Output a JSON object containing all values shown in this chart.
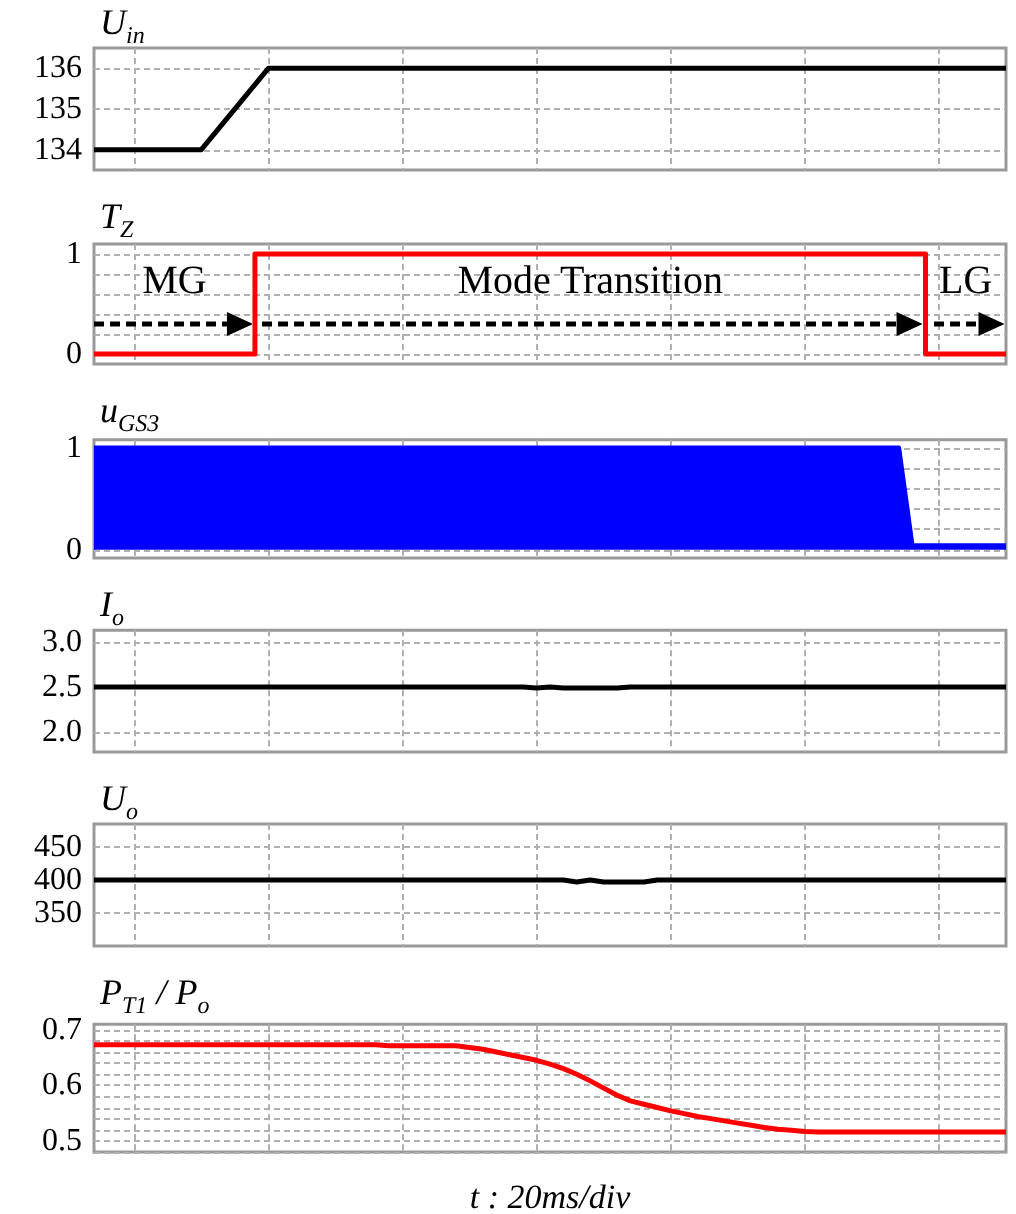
{
  "chart_data": [
    {
      "type": "line",
      "title": "U$_{in}$",
      "tick_labels": "y",
      "grid": true,
      "color": "#000000",
      "ylim": [
        133.5,
        136.5
      ],
      "yticks": [
        134,
        135,
        136
      ],
      "categories": [
        null,
        null,
        null,
        null,
        null,
        null,
        null,
        null,
        null,
        null,
        null,
        null,
        null,
        null,
        null,
        null,
        null,
        null,
        null,
        null,
        null,
        null,
        null,
        null,
        null,
        null,
        null,
        null,
        null,
        null,
        null,
        null,
        null,
        null,
        null,
        null,
        null,
        null,
        null,
        null,
        null,
        null,
        null,
        null,
        null,
        null,
        null,
        null,
        null,
        null,
        null,
        null,
        null,
        null,
        null,
        null,
        null,
        null,
        null,
        null,
        null,
        null,
        null,
        null,
        null,
        null,
        null,
        null,
        null
      ],
      "values": [
        134,
        134,
        134,
        134,
        134,
        134,
        134,
        134,
        134,
        134.4,
        134.8,
        135.2,
        135.6,
        136,
        136,
        136,
        136,
        136,
        136,
        136,
        136,
        136,
        136,
        136,
        136,
        136,
        136,
        136,
        136,
        136,
        136,
        136,
        136,
        136,
        136,
        136,
        136,
        136,
        136,
        136,
        136,
        136,
        136,
        136,
        136,
        136,
        136,
        136,
        136,
        136,
        136,
        136,
        136,
        136,
        136,
        136,
        136,
        136,
        136,
        136,
        136,
        136,
        136,
        136,
        136,
        136,
        136,
        136,
        136
      ]
    },
    {
      "type": "step",
      "title": "T$_{Z}$",
      "tick_labels": "y",
      "grid": true,
      "color": "#ff0000",
      "ylim": [
        -0.1,
        1.1
      ],
      "yticks": [
        0,
        {
          "value": 0.2,
          "label": null
        },
        {
          "value": 0.4,
          "label": null
        },
        {
          "value": 0.6,
          "label": null
        },
        {
          "value": 0.8,
          "label": null
        },
        1
      ],
      "annotations": [
        "MG",
        "Mode Transition",
        "LG"
      ],
      "categories": [
        null,
        null,
        null,
        null,
        null,
        null,
        null,
        null,
        null,
        null,
        null,
        null,
        null,
        null,
        null,
        null,
        null,
        null,
        null,
        null,
        null,
        null,
        null,
        null,
        null,
        null,
        null,
        null,
        null,
        null,
        null,
        null,
        null,
        null,
        null,
        null,
        null,
        null,
        null,
        null,
        null,
        null,
        null,
        null,
        null,
        null,
        null,
        null,
        null,
        null,
        null,
        null,
        null,
        null,
        null,
        null,
        null,
        null,
        null,
        null,
        null,
        null,
        null,
        null,
        null,
        null,
        null,
        null,
        null
      ],
      "values": [
        0,
        0,
        0,
        0,
        0,
        0,
        0,
        0,
        0,
        0,
        0,
        0,
        1,
        1,
        1,
        1,
        1,
        1,
        1,
        1,
        1,
        1,
        1,
        1,
        1,
        1,
        1,
        1,
        1,
        1,
        1,
        1,
        1,
        1,
        1,
        1,
        1,
        1,
        1,
        1,
        1,
        1,
        1,
        1,
        1,
        1,
        1,
        1,
        1,
        1,
        1,
        1,
        1,
        1,
        1,
        1,
        1,
        1,
        1,
        1,
        1,
        1,
        0,
        0,
        0,
        0,
        0,
        0,
        0
      ]
    },
    {
      "type": "area",
      "title": "u$_{GS3}$",
      "tick_labels": "y",
      "grid": true,
      "color": "#0000ff",
      "ylim": [
        -0.08,
        1.08
      ],
      "yticks": [
        0,
        {
          "value": 0.2,
          "label": null
        },
        {
          "value": 0.4,
          "label": null
        },
        {
          "value": 0.6,
          "label": null
        },
        {
          "value": 0.8,
          "label": null
        },
        1
      ],
      "categories": [
        null,
        null,
        null,
        null,
        null,
        null,
        null,
        null,
        null,
        null,
        null,
        null,
        null,
        null,
        null,
        null,
        null,
        null,
        null,
        null,
        null,
        null,
        null,
        null,
        null,
        null,
        null,
        null,
        null,
        null,
        null,
        null,
        null,
        null,
        null,
        null,
        null,
        null,
        null,
        null,
        null,
        null,
        null,
        null,
        null,
        null,
        null,
        null,
        null,
        null,
        null,
        null,
        null,
        null,
        null,
        null,
        null,
        null,
        null,
        null,
        null,
        null,
        null,
        null,
        null,
        null,
        null,
        null,
        null
      ],
      "values": [
        1,
        1,
        1,
        1,
        1,
        1,
        1,
        1,
        1,
        1,
        1,
        1,
        1,
        1,
        1,
        1,
        1,
        1,
        1,
        1,
        1,
        1,
        1,
        1,
        1,
        1,
        1,
        1,
        1,
        1,
        1,
        1,
        1,
        1,
        1,
        1,
        1,
        1,
        1,
        1,
        1,
        1,
        1,
        1,
        1,
        1,
        1,
        1,
        1,
        1,
        1,
        1,
        1,
        1,
        1,
        1,
        1,
        1,
        1,
        1,
        1,
        0.04,
        0.04,
        0.04,
        0.04,
        0.04,
        0.04,
        0.04,
        0.04
      ]
    },
    {
      "type": "line",
      "title": "I$_{o}$",
      "tick_labels": "y",
      "grid": true,
      "color": "#000000",
      "ylim": [
        1.78,
        3.13
      ],
      "yticks": [
        {
          "value": 2,
          "label": "2.0"
        },
        2.5,
        {
          "value": 3,
          "label": "3.0"
        }
      ],
      "categories": [
        null,
        null,
        null,
        null,
        null,
        null,
        null,
        null,
        null,
        null,
        null,
        null,
        null,
        null,
        null,
        null,
        null,
        null,
        null,
        null,
        null,
        null,
        null,
        null,
        null,
        null,
        null,
        null,
        null,
        null,
        null,
        null,
        null,
        null,
        null,
        null,
        null,
        null,
        null,
        null,
        null,
        null,
        null,
        null,
        null,
        null,
        null,
        null,
        null,
        null,
        null,
        null,
        null,
        null,
        null,
        null,
        null,
        null,
        null,
        null,
        null,
        null,
        null,
        null,
        null,
        null,
        null,
        null,
        null
      ],
      "values": [
        2.5,
        2.5,
        2.5,
        2.5,
        2.5,
        2.5,
        2.5,
        2.5,
        2.5,
        2.5,
        2.5,
        2.5,
        2.5,
        2.5,
        2.5,
        2.5,
        2.5,
        2.5,
        2.5,
        2.5,
        2.5,
        2.5,
        2.5,
        2.5,
        2.5,
        2.5,
        2.5,
        2.5,
        2.5,
        2.5,
        2.5,
        2.5,
        2.5,
        2.49,
        2.5,
        2.49,
        2.49,
        2.49,
        2.49,
        2.49,
        2.5,
        2.5,
        2.5,
        2.5,
        2.5,
        2.5,
        2.5,
        2.5,
        2.5,
        2.5,
        2.5,
        2.5,
        2.5,
        2.5,
        2.5,
        2.5,
        2.5,
        2.5,
        2.5,
        2.5,
        2.5,
        2.5,
        2.5,
        2.5,
        2.5,
        2.5,
        2.5,
        2.5,
        2.5
      ]
    },
    {
      "type": "line",
      "title": "U$_{o}$",
      "tick_labels": "y",
      "grid": true,
      "color": "#000000",
      "ylim": [
        300,
        485
      ],
      "yticks": [
        350,
        400,
        450
      ],
      "categories": [
        null,
        null,
        null,
        null,
        null,
        null,
        null,
        null,
        null,
        null,
        null,
        null,
        null,
        null,
        null,
        null,
        null,
        null,
        null,
        null,
        null,
        null,
        null,
        null,
        null,
        null,
        null,
        null,
        null,
        null,
        null,
        null,
        null,
        null,
        null,
        null,
        null,
        null,
        null,
        null,
        null,
        null,
        null,
        null,
        null,
        null,
        null,
        null,
        null,
        null,
        null,
        null,
        null,
        null,
        null,
        null,
        null,
        null,
        null,
        null,
        null,
        null,
        null,
        null,
        null,
        null,
        null,
        null,
        null
      ],
      "values": [
        400,
        400,
        400,
        400,
        400,
        400,
        400,
        400,
        400,
        400,
        400,
        400,
        400,
        400,
        400,
        400,
        400,
        400,
        400,
        400,
        400,
        400,
        400,
        400,
        400,
        400,
        400,
        400,
        400,
        400,
        400,
        400,
        400,
        400,
        400,
        400,
        397,
        400,
        397,
        397,
        397,
        397,
        400,
        400,
        400,
        400,
        400,
        400,
        400,
        400,
        400,
        400,
        400,
        400,
        400,
        400,
        400,
        400,
        400,
        400,
        400,
        400,
        400,
        400,
        400,
        400,
        400,
        400,
        400
      ]
    },
    {
      "type": "line",
      "title": "P$_{T1}$ / P$_{o}$",
      "xlabel": "t : 20ms/div",
      "tick_labels": "y",
      "grid": true,
      "color": "#ff0000",
      "ylim": [
        0.48,
        0.71
      ],
      "yticks": [
        {
          "value": 0.48,
          "label": null
        },
        0.5,
        {
          "value": 0.52,
          "label": null
        },
        {
          "value": 0.54,
          "label": null
        },
        {
          "value": 0.56,
          "label": null
        },
        {
          "value": 0.58,
          "label": null
        },
        0.6,
        {
          "value": 0.62,
          "label": null
        },
        {
          "value": 0.64,
          "label": null
        },
        {
          "value": 0.66,
          "label": null
        },
        {
          "value": 0.68,
          "label": null
        },
        0.7
      ],
      "categories": [
        null,
        null,
        null,
        null,
        null,
        null,
        null,
        null,
        null,
        null,
        null,
        null,
        null,
        null,
        null,
        null,
        null,
        null,
        null,
        null,
        null,
        null,
        null,
        null,
        null,
        null,
        null,
        null,
        null,
        null,
        null,
        null,
        null,
        null,
        null,
        null,
        null,
        null,
        null,
        null,
        null,
        null,
        null,
        null,
        null,
        null,
        null,
        null,
        null,
        null,
        null,
        null,
        null,
        null,
        null,
        null,
        null,
        null,
        null,
        null,
        null,
        null,
        null,
        null,
        null,
        null,
        null,
        null,
        null
      ],
      "values": [
        0.673,
        0.673,
        0.673,
        0.673,
        0.673,
        0.673,
        0.673,
        0.673,
        0.673,
        0.673,
        0.673,
        0.673,
        0.673,
        0.673,
        0.673,
        0.673,
        0.673,
        0.673,
        0.673,
        0.673,
        0.673,
        0.673,
        0.671,
        0.671,
        0.671,
        0.671,
        0.671,
        0.671,
        0.668,
        0.665,
        0.66,
        0.655,
        0.65,
        0.645,
        0.638,
        0.63,
        0.62,
        0.608,
        0.595,
        0.582,
        0.572,
        0.566,
        0.56,
        0.554,
        0.549,
        0.544,
        0.54,
        0.536,
        0.532,
        0.528,
        0.524,
        0.521,
        0.519,
        0.517,
        0.516,
        0.516,
        0.516,
        0.516,
        0.516,
        0.516,
        0.516,
        0.516,
        0.516,
        0.516,
        0.516,
        0.516,
        0.516,
        0.516,
        0.516
      ]
    }
  ]
}
